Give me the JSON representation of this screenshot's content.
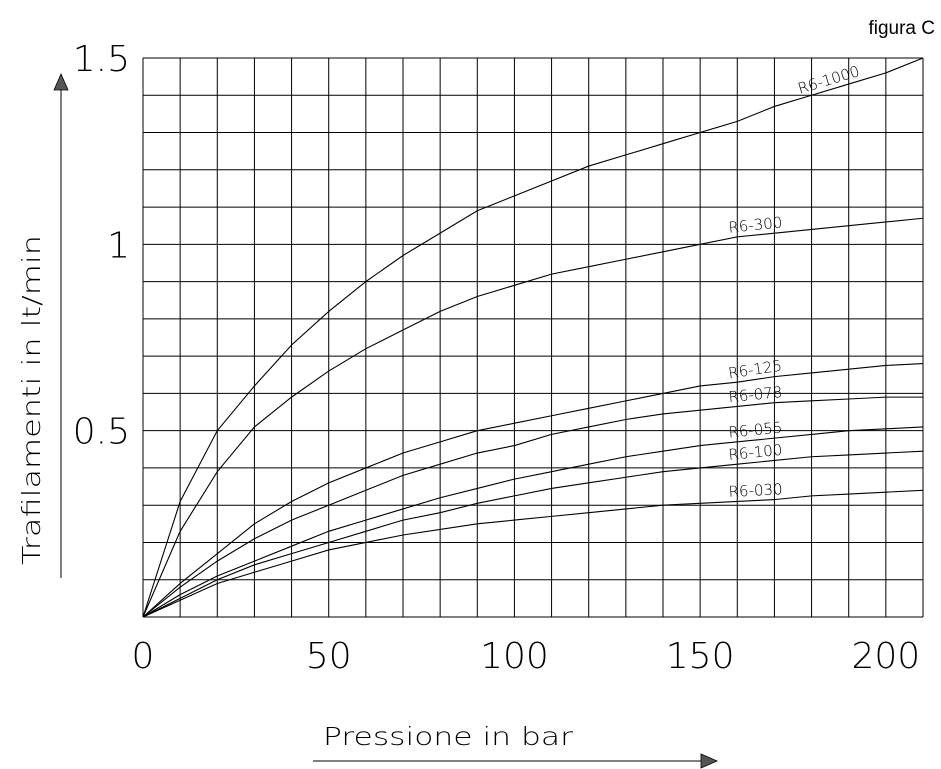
{
  "figure_label": "figura C",
  "chart_data": {
    "type": "line",
    "title": "",
    "xlabel": "Pressione in bar",
    "ylabel": "Trafilamenti in lt/min",
    "xlim": [
      0,
      210
    ],
    "ylim": [
      0,
      1.5
    ],
    "x_ticks": [
      0,
      50,
      100,
      150,
      200
    ],
    "x_tick_labels": [
      "0",
      "50",
      "100",
      "150",
      "200"
    ],
    "y_ticks": [
      0.5,
      1,
      1.5
    ],
    "y_tick_labels": [
      "0.5",
      "1",
      "1.5"
    ],
    "grid": true,
    "grid_x_step": 10,
    "grid_y_step": 0.1,
    "x": [
      0,
      10,
      20,
      30,
      40,
      50,
      60,
      70,
      80,
      90,
      100,
      110,
      120,
      130,
      140,
      150,
      160,
      170,
      180,
      190,
      200,
      210
    ],
    "series": [
      {
        "name": "R6-1000",
        "values": [
          0,
          0.31,
          0.5,
          0.62,
          0.73,
          0.82,
          0.9,
          0.97,
          1.03,
          1.09,
          1.13,
          1.17,
          1.21,
          1.24,
          1.27,
          1.3,
          1.33,
          1.37,
          1.4,
          1.43,
          1.46,
          1.5
        ]
      },
      {
        "name": "R6-300",
        "values": [
          0,
          0.23,
          0.39,
          0.51,
          0.59,
          0.66,
          0.72,
          0.77,
          0.82,
          0.86,
          0.89,
          0.92,
          0.94,
          0.96,
          0.98,
          1.0,
          1.02,
          1.03,
          1.04,
          1.05,
          1.06,
          1.07
        ]
      },
      {
        "name": "R6-125",
        "values": [
          0,
          0.09,
          0.17,
          0.25,
          0.31,
          0.36,
          0.4,
          0.44,
          0.47,
          0.5,
          0.52,
          0.54,
          0.56,
          0.58,
          0.6,
          0.62,
          0.63,
          0.645,
          0.655,
          0.665,
          0.675,
          0.68
        ]
      },
      {
        "name": "R6-078",
        "values": [
          0,
          0.08,
          0.15,
          0.21,
          0.26,
          0.3,
          0.34,
          0.38,
          0.41,
          0.44,
          0.46,
          0.49,
          0.51,
          0.53,
          0.545,
          0.555,
          0.565,
          0.575,
          0.58,
          0.585,
          0.59,
          0.59
        ]
      },
      {
        "name": "R6-055",
        "values": [
          0,
          0.06,
          0.11,
          0.15,
          0.19,
          0.23,
          0.26,
          0.29,
          0.32,
          0.345,
          0.37,
          0.39,
          0.41,
          0.43,
          0.445,
          0.46,
          0.47,
          0.48,
          0.49,
          0.5,
          0.505,
          0.51
        ]
      },
      {
        "name": "R6-100",
        "values": [
          0,
          0.05,
          0.1,
          0.14,
          0.17,
          0.2,
          0.23,
          0.26,
          0.28,
          0.305,
          0.325,
          0.345,
          0.36,
          0.375,
          0.39,
          0.4,
          0.41,
          0.42,
          0.43,
          0.435,
          0.44,
          0.445
        ]
      },
      {
        "name": "R6-030",
        "values": [
          0,
          0.045,
          0.09,
          0.12,
          0.15,
          0.18,
          0.2,
          0.22,
          0.235,
          0.25,
          0.26,
          0.27,
          0.28,
          0.29,
          0.3,
          0.305,
          0.31,
          0.315,
          0.325,
          0.33,
          0.335,
          0.34
        ]
      }
    ]
  }
}
